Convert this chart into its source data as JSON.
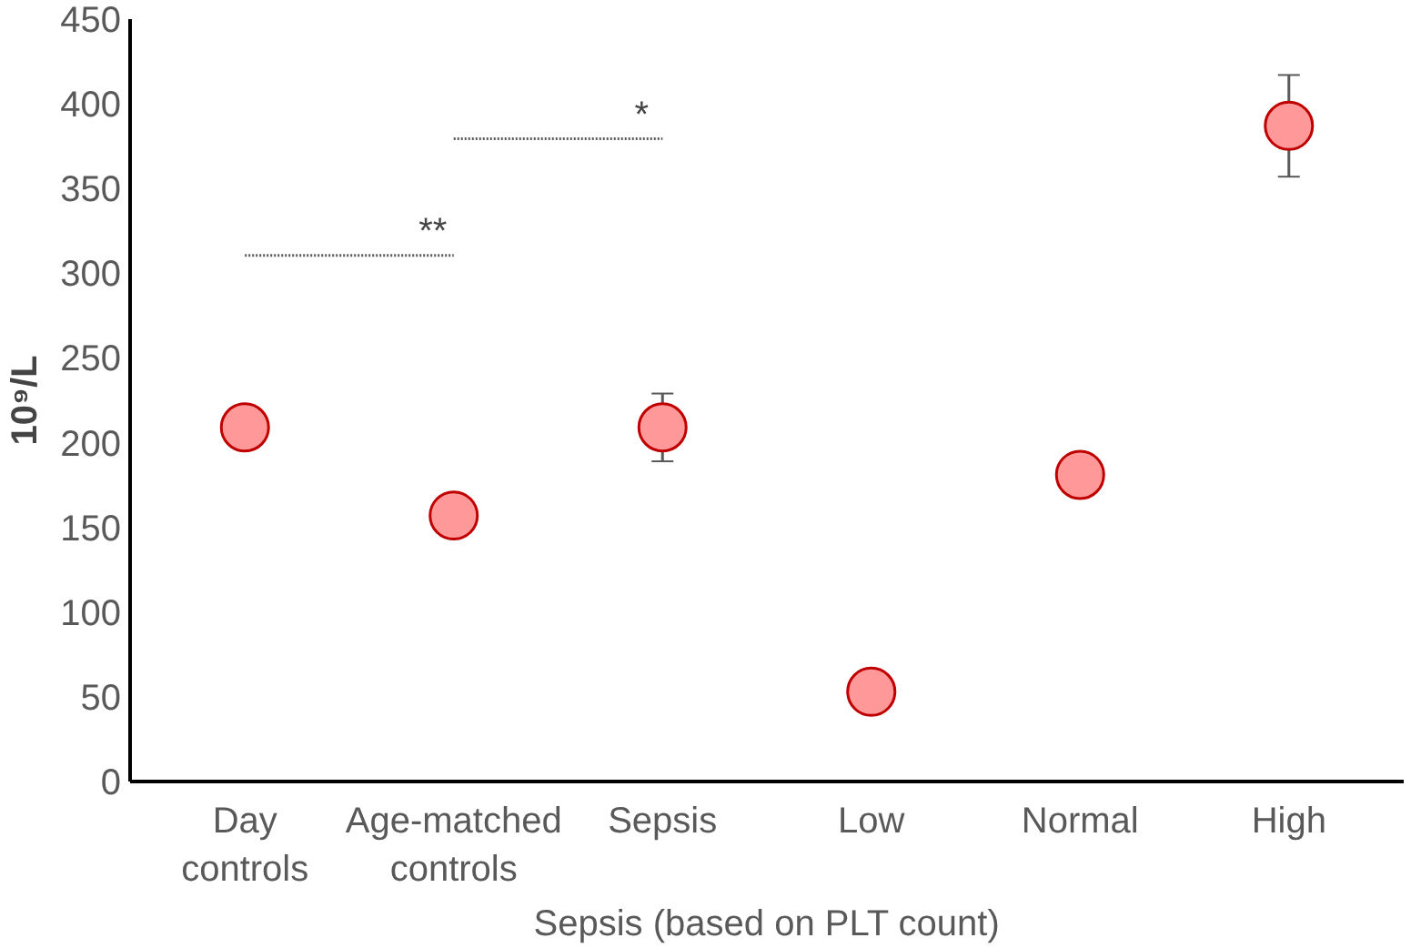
{
  "chart_data": {
    "type": "scatter",
    "categories": [
      "Day\ncontrols",
      "Age-matched\ncontrols",
      "Sepsis",
      "Low",
      "Normal",
      "High"
    ],
    "values": [
      209,
      157,
      209,
      53,
      181,
      387
    ],
    "errors": [
      null,
      null,
      20,
      null,
      null,
      30
    ],
    "color": "#ff9999",
    "marker": "circle",
    "ylim": [
      0,
      450
    ],
    "yticks": [
      0,
      50,
      100,
      150,
      200,
      250,
      300,
      350,
      400,
      450
    ],
    "ylabel": "10⁹/L",
    "xlabel": "Sepsis (based on PLT count)",
    "grid": false,
    "annotations": [
      "**",
      "*"
    ]
  }
}
